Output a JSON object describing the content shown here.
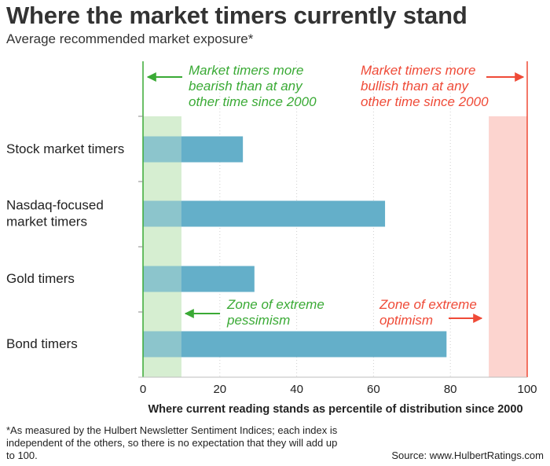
{
  "title": "Where the market timers currently stand",
  "subtitle": "Average recommended market exposure*",
  "footnote": "*As measured by the Hulbert Newsletter Sentiment Indices; each index is independent of the others, so there is no expectation that they will add up to 100.",
  "source": "Source: www.HulbertRatings.com",
  "colors": {
    "bar": "#64afc9",
    "zone_pessimism": "#d6efd2",
    "zone_optimism": "#fcd4cf",
    "green": "#3aaa35",
    "red": "#ef4a37",
    "axis": "#888888"
  },
  "chart_data": {
    "type": "bar",
    "orientation": "horizontal",
    "categories": [
      "Stock market timers",
      "Nasdaq-focused market timers",
      "Gold timers",
      "Bond timers"
    ],
    "category_lines": [
      [
        "Stock market timers"
      ],
      [
        "Nasdaq-focused",
        "market timers"
      ],
      [
        "Gold timers"
      ],
      [
        "Bond timers"
      ]
    ],
    "values": [
      26,
      63,
      29,
      79
    ],
    "xlim": [
      0,
      100
    ],
    "xticks": [
      0,
      20,
      40,
      60,
      80,
      100
    ],
    "xlabel": "Where current reading stands as percentile of distribution since 2000",
    "zones": [
      {
        "name": "pessimism",
        "from": 0,
        "to": 10
      },
      {
        "name": "optimism",
        "from": 90,
        "to": 100
      }
    ],
    "annotations": {
      "bearish": [
        "Market timers more",
        "bearish than at any",
        "other time since 2000"
      ],
      "bullish": [
        "Market timers more",
        "bullish than at any",
        "other time since 2000"
      ],
      "pessimism": [
        "Zone of extreme",
        "pessimism"
      ],
      "optimism": [
        "Zone of extreme",
        "optimism"
      ]
    },
    "grid": true
  }
}
